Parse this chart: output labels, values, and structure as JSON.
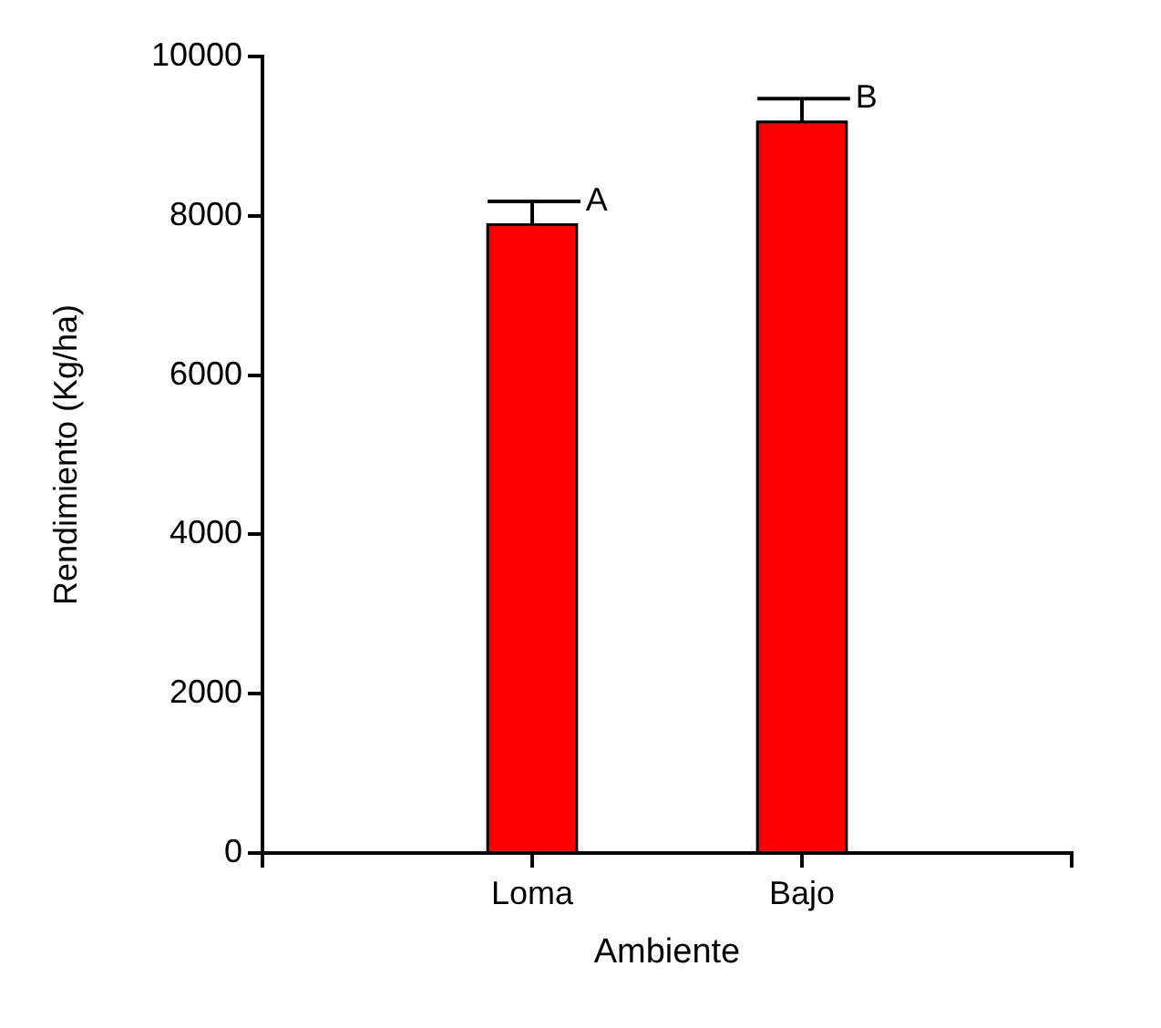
{
  "chart_data": {
    "type": "bar",
    "xlabel": "Ambiente",
    "ylabel": "Rendimiento (Kg/ha)",
    "categories": [
      "Loma",
      "Bajo"
    ],
    "values": [
      7890,
      9180
    ],
    "color": "#ff0000",
    "errors": [
      [
        7890,
        8180
      ],
      [
        9180,
        9470
      ]
    ],
    "ylim": [
      0,
      10000
    ],
    "yticks": [
      0,
      2000,
      4000,
      6000,
      8000,
      10000
    ],
    "annotations": [
      {
        "text": "A",
        "x": "Loma",
        "y": 8180
      },
      {
        "text": "B",
        "x": "Bajo",
        "y": 9470
      }
    ]
  }
}
